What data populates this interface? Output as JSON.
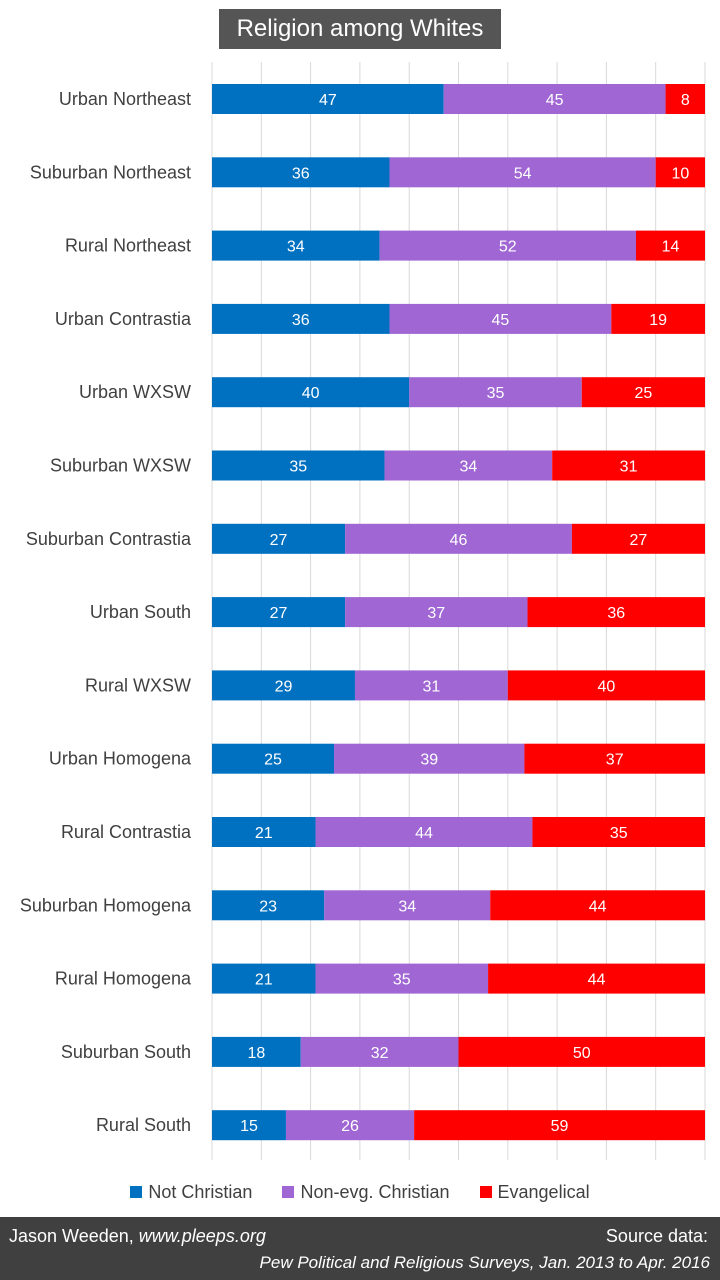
{
  "chart_data": {
    "type": "bar",
    "orientation": "horizontal",
    "stacked": true,
    "normalized_percent": true,
    "title": "Religion among Whites",
    "categories": [
      "Urban Northeast",
      "Suburban Northeast",
      "Rural Northeast",
      "Urban Contrastia",
      "Urban WXSW",
      "Suburban WXSW",
      "Suburban Contrastia",
      "Urban South",
      "Rural WXSW",
      "Urban Homogena",
      "Rural Contrastia",
      "Suburban Homogena",
      "Rural Homogena",
      "Suburban South",
      "Rural South"
    ],
    "series": [
      {
        "name": "Not Christian",
        "color": "#0070c0",
        "values": [
          47,
          36,
          34,
          36,
          40,
          35,
          27,
          27,
          29,
          25,
          21,
          23,
          21,
          18,
          15
        ]
      },
      {
        "name": "Non-evg. Christian",
        "color": "#a066d3",
        "values": [
          45,
          54,
          52,
          45,
          35,
          34,
          46,
          37,
          31,
          39,
          44,
          34,
          35,
          32,
          26
        ]
      },
      {
        "name": "Evangelical",
        "color": "#ff0000",
        "values": [
          8,
          10,
          14,
          19,
          25,
          31,
          27,
          36,
          40,
          37,
          35,
          44,
          44,
          50,
          59
        ]
      }
    ],
    "legend_position": "bottom",
    "vertical_gridlines": true
  },
  "footer": {
    "author": "Jason Weeden, ",
    "author_site": "www.pleeps.org",
    "source_label": "Source data:",
    "source_detail": "Pew Political and Religious Surveys, Jan. 2013 to Apr. 2016"
  }
}
